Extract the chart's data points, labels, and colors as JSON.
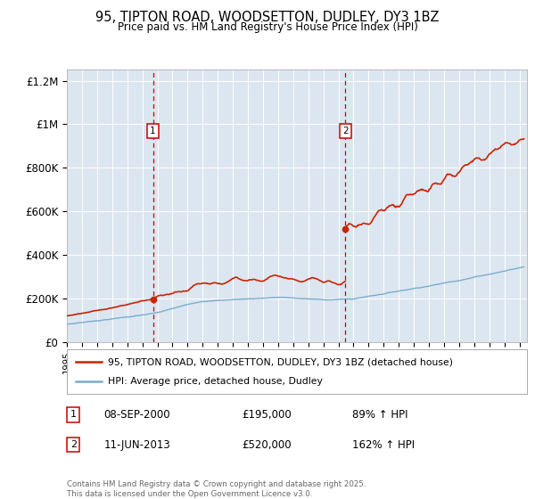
{
  "title": "95, TIPTON ROAD, WOODSETTON, DUDLEY, DY3 1BZ",
  "subtitle": "Price paid vs. HM Land Registry's House Price Index (HPI)",
  "plot_bg_color": "#dce6f1",
  "red_line_color": "#cc2200",
  "blue_line_color": "#7aaccc",
  "vline_color": "#cc0000",
  "ylim": [
    0,
    1250000
  ],
  "yticks": [
    0,
    200000,
    400000,
    600000,
    800000,
    1000000,
    1200000
  ],
  "ytick_labels": [
    "£0",
    "£200K",
    "£400K",
    "£600K",
    "£800K",
    "£1M",
    "£1.2M"
  ],
  "t1": 2000.708,
  "t2": 2013.458,
  "price1": 195000,
  "price2": 520000,
  "box_label1": "1",
  "box_label2": "2",
  "legend_red_label": "95, TIPTON ROAD, WOODSETTON, DUDLEY, DY3 1BZ (detached house)",
  "legend_blue_label": "HPI: Average price, detached house, Dudley",
  "footer": "Contains HM Land Registry data © Crown copyright and database right 2025.\nThis data is licensed under the Open Government Licence v3.0.",
  "annotation_table": [
    {
      "num": "1",
      "date": "08-SEP-2000",
      "price": "£195,000",
      "hpi": "89% ↑ HPI"
    },
    {
      "num": "2",
      "date": "11-JUN-2013",
      "price": "£520,000",
      "hpi": "162% ↑ HPI"
    }
  ]
}
